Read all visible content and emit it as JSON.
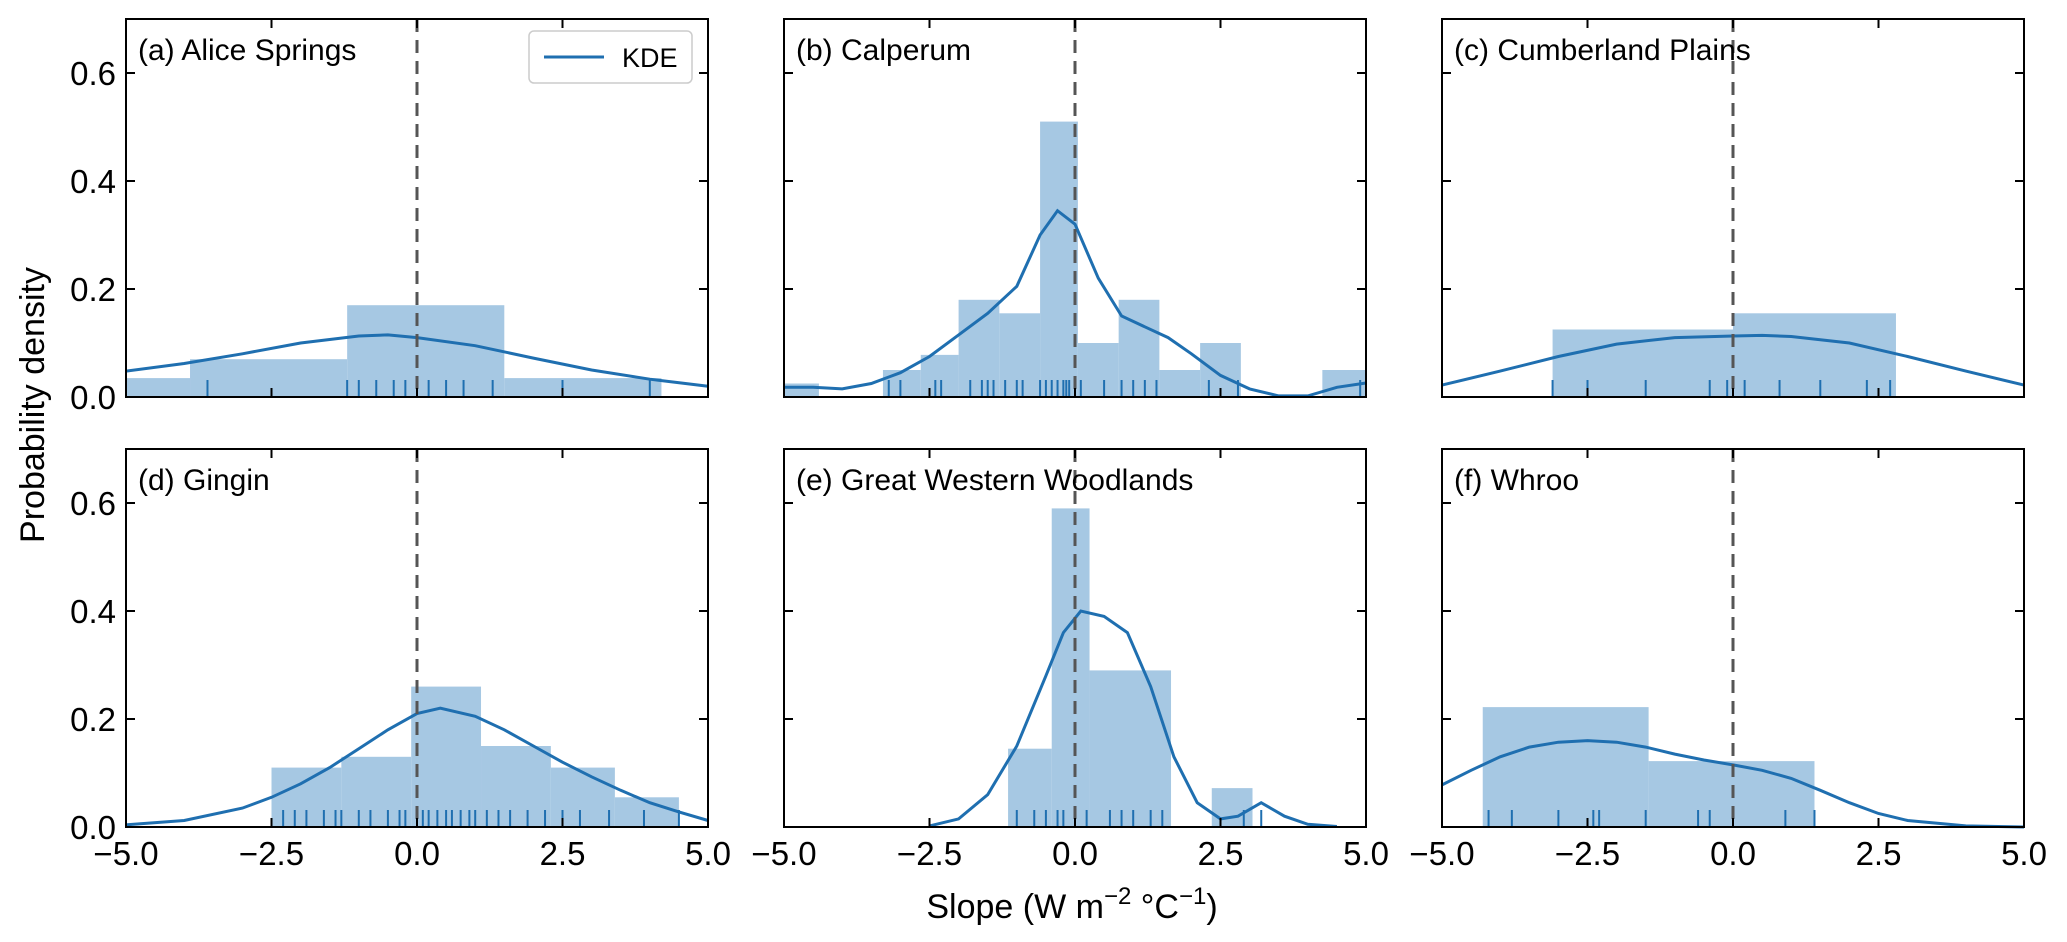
{
  "figure": {
    "ylabel": "Probability density",
    "xlabel": "Slope (W m",
    "xlabel_sup1": "−2",
    "xlabel_mid": " °C",
    "xlabel_sup2": "−1",
    "xlabel_end": ")",
    "legend_label": "KDE",
    "colors": {
      "hist": "#a6c8e3",
      "kde": "#1f6fb0",
      "zero_line": "#555555"
    }
  },
  "chart_data": [
    {
      "type": "histogram+kde",
      "title": "(a) Alice Springs",
      "xlim": [
        -5,
        5
      ],
      "ylim": [
        0,
        0.7
      ],
      "xticks": [
        "−5.0",
        "−2.5",
        "0.0",
        "2.5",
        "5.0"
      ],
      "yticks": [
        "0.0",
        "0.2",
        "0.4",
        "0.6"
      ],
      "bin_edges": [
        -5.0,
        -3.9,
        -1.2,
        1.5,
        4.2
      ],
      "bin_heights": [
        0.035,
        0.07,
        0.17,
        0.035
      ],
      "kde": [
        [
          -5,
          0.048
        ],
        [
          -4,
          0.062
        ],
        [
          -3,
          0.08
        ],
        [
          -2,
          0.1
        ],
        [
          -1,
          0.113
        ],
        [
          -0.5,
          0.115
        ],
        [
          0,
          0.11
        ],
        [
          1,
          0.095
        ],
        [
          2,
          0.072
        ],
        [
          3,
          0.05
        ],
        [
          4,
          0.033
        ],
        [
          5,
          0.02
        ]
      ],
      "rug": [
        -3.6,
        -1.2,
        -1.0,
        -0.7,
        -0.4,
        -0.2,
        0.0,
        0.2,
        0.5,
        0.8,
        1.3,
        2.5,
        4.0
      ],
      "zero_line": 0.0
    },
    {
      "type": "histogram+kde",
      "title": "(b) Calperum",
      "xlim": [
        -5,
        5
      ],
      "ylim": [
        0,
        0.7
      ],
      "xticks": [
        "−5.0",
        "−2.5",
        "0.0",
        "2.5",
        "5.0"
      ],
      "yticks": [
        "0.0",
        "0.2",
        "0.4",
        "0.6"
      ],
      "bin_edges": [
        -5.0,
        -4.4,
        -3.3,
        -2.65,
        -2.0,
        -1.3,
        -0.6,
        0.05,
        0.75,
        1.45,
        2.15,
        2.85,
        4.25,
        5.0
      ],
      "bin_heights": [
        0.025,
        0,
        0.05,
        0.078,
        0.18,
        0.155,
        0.51,
        0.1,
        0.18,
        0.05,
        0.1,
        0,
        0.05
      ],
      "kde": [
        [
          -5,
          0.018
        ],
        [
          -4.5,
          0.018
        ],
        [
          -4,
          0.015
        ],
        [
          -3.5,
          0.025
        ],
        [
          -3,
          0.045
        ],
        [
          -2.5,
          0.075
        ],
        [
          -2,
          0.115
        ],
        [
          -1.5,
          0.155
        ],
        [
          -1,
          0.205
        ],
        [
          -0.6,
          0.3
        ],
        [
          -0.3,
          0.345
        ],
        [
          0,
          0.32
        ],
        [
          0.4,
          0.22
        ],
        [
          0.8,
          0.15
        ],
        [
          1.2,
          0.13
        ],
        [
          1.6,
          0.11
        ],
        [
          2,
          0.08
        ],
        [
          2.5,
          0.04
        ],
        [
          3,
          0.015
        ],
        [
          3.5,
          0.002
        ],
        [
          4,
          0.002
        ],
        [
          4.5,
          0.018
        ],
        [
          5,
          0.026
        ]
      ],
      "rug": [
        -3.2,
        -3.0,
        -2.4,
        -2.3,
        -1.8,
        -1.6,
        -1.5,
        -1.4,
        -1.2,
        -1.0,
        -0.9,
        -0.6,
        -0.5,
        -0.4,
        -0.3,
        -0.2,
        -0.15,
        -0.1,
        0.0,
        0.1,
        0.5,
        0.8,
        1.0,
        1.2,
        1.4,
        2.3,
        2.8,
        4.9
      ],
      "zero_line": 0.0
    },
    {
      "type": "histogram+kde",
      "title": "(c) Cumberland Plains",
      "xlim": [
        -5,
        5
      ],
      "ylim": [
        0,
        0.7
      ],
      "xticks": [
        "−5.0",
        "−2.5",
        "0.0",
        "2.5",
        "5.0"
      ],
      "yticks": [
        "0.0",
        "0.2",
        "0.4",
        "0.6"
      ],
      "bin_edges": [
        -3.1,
        0.0,
        2.8
      ],
      "bin_heights": [
        0.125,
        0.155
      ],
      "kde": [
        [
          -5,
          0.022
        ],
        [
          -4,
          0.048
        ],
        [
          -3,
          0.075
        ],
        [
          -2,
          0.098
        ],
        [
          -1,
          0.11
        ],
        [
          0,
          0.113
        ],
        [
          0.5,
          0.114
        ],
        [
          1,
          0.112
        ],
        [
          2,
          0.1
        ],
        [
          3,
          0.075
        ],
        [
          4,
          0.048
        ],
        [
          5,
          0.022
        ]
      ],
      "rug": [
        -3.1,
        -2.5,
        -1.5,
        -0.4,
        -0.1,
        0.2,
        0.8,
        1.5,
        2.3,
        2.7
      ],
      "zero_line": 0.0
    },
    {
      "type": "histogram+kde",
      "title": "(d) Gingin",
      "xlim": [
        -5,
        5
      ],
      "ylim": [
        0,
        0.7
      ],
      "xticks": [
        "−5.0",
        "−2.5",
        "0.0",
        "2.5",
        "5.0"
      ],
      "yticks": [
        "0.0",
        "0.2",
        "0.4",
        "0.6"
      ],
      "bin_edges": [
        -2.5,
        -1.3,
        -0.1,
        1.1,
        2.3,
        3.4,
        4.5
      ],
      "bin_heights": [
        0.11,
        0.13,
        0.26,
        0.15,
        0.11,
        0.055
      ],
      "kde": [
        [
          -5,
          0.004
        ],
        [
          -4,
          0.012
        ],
        [
          -3,
          0.035
        ],
        [
          -2.5,
          0.055
        ],
        [
          -2,
          0.08
        ],
        [
          -1.5,
          0.11
        ],
        [
          -1,
          0.145
        ],
        [
          -0.5,
          0.18
        ],
        [
          0,
          0.21
        ],
        [
          0.4,
          0.22
        ],
        [
          1,
          0.205
        ],
        [
          1.5,
          0.18
        ],
        [
          2,
          0.15
        ],
        [
          2.5,
          0.12
        ],
        [
          3,
          0.093
        ],
        [
          3.5,
          0.068
        ],
        [
          4,
          0.045
        ],
        [
          4.5,
          0.028
        ],
        [
          5,
          0.012
        ]
      ],
      "rug": [
        -2.3,
        -2.1,
        -1.9,
        -1.6,
        -1.4,
        -1.3,
        -1.0,
        -0.8,
        -0.5,
        -0.3,
        -0.2,
        0.1,
        0.2,
        0.35,
        0.5,
        0.6,
        0.75,
        0.9,
        1.0,
        1.2,
        1.4,
        1.6,
        1.9,
        2.2,
        2.5,
        2.8,
        3.3,
        3.9,
        4.5
      ],
      "zero_line": 0.0
    },
    {
      "type": "histogram+kde",
      "title": "(e) Great Western Woodlands",
      "xlim": [
        -5,
        5
      ],
      "ylim": [
        0,
        0.7
      ],
      "xticks": [
        "−5.0",
        "−2.5",
        "0.0",
        "2.5",
        "5.0"
      ],
      "yticks": [
        "0.0",
        "0.2",
        "0.4",
        "0.6"
      ],
      "bin_edges": [
        -1.15,
        -0.4,
        0.25,
        1.65,
        2.35,
        3.05
      ],
      "bin_heights": [
        0.145,
        0.59,
        0.29,
        0,
        0.072
      ],
      "kde": [
        [
          -2.5,
          0.002
        ],
        [
          -2,
          0.015
        ],
        [
          -1.5,
          0.06
        ],
        [
          -1,
          0.15
        ],
        [
          -0.5,
          0.28
        ],
        [
          -0.2,
          0.36
        ],
        [
          0.1,
          0.4
        ],
        [
          0.5,
          0.39
        ],
        [
          0.9,
          0.36
        ],
        [
          1.3,
          0.26
        ],
        [
          1.7,
          0.13
        ],
        [
          2.1,
          0.045
        ],
        [
          2.5,
          0.015
        ],
        [
          2.8,
          0.02
        ],
        [
          3.2,
          0.045
        ],
        [
          3.6,
          0.02
        ],
        [
          4,
          0.005
        ],
        [
          4.5,
          0.001
        ]
      ],
      "rug": [
        -1.0,
        -0.7,
        -0.5,
        -0.3,
        -0.2,
        0.0,
        0.2,
        0.6,
        0.8,
        1.0,
        1.3,
        1.5,
        2.9,
        3.2
      ],
      "zero_line": 0.0
    },
    {
      "type": "histogram+kde",
      "title": "(f) Whroo",
      "xlim": [
        -5,
        5
      ],
      "ylim": [
        0,
        0.7
      ],
      "xticks": [
        "−5.0",
        "−2.5",
        "0.0",
        "2.5",
        "5.0"
      ],
      "yticks": [
        "0.0",
        "0.2",
        "0.4",
        "0.6"
      ],
      "bin_edges": [
        -4.3,
        -1.45,
        1.4
      ],
      "bin_heights": [
        0.222,
        0.122
      ],
      "kde": [
        [
          -5,
          0.078
        ],
        [
          -4.5,
          0.105
        ],
        [
          -4,
          0.13
        ],
        [
          -3.5,
          0.148
        ],
        [
          -3,
          0.157
        ],
        [
          -2.5,
          0.16
        ],
        [
          -2,
          0.157
        ],
        [
          -1.5,
          0.148
        ],
        [
          -1,
          0.135
        ],
        [
          -0.5,
          0.124
        ],
        [
          0,
          0.115
        ],
        [
          0.5,
          0.105
        ],
        [
          1,
          0.09
        ],
        [
          1.5,
          0.068
        ],
        [
          2,
          0.045
        ],
        [
          2.5,
          0.025
        ],
        [
          3,
          0.012
        ],
        [
          4,
          0.002
        ],
        [
          5,
          0.0
        ]
      ],
      "rug": [
        -4.2,
        -3.8,
        -3.0,
        -2.4,
        -2.3,
        -1.5,
        -0.6,
        -0.4,
        0.9,
        1.4
      ],
      "zero_line": 0.0
    }
  ]
}
